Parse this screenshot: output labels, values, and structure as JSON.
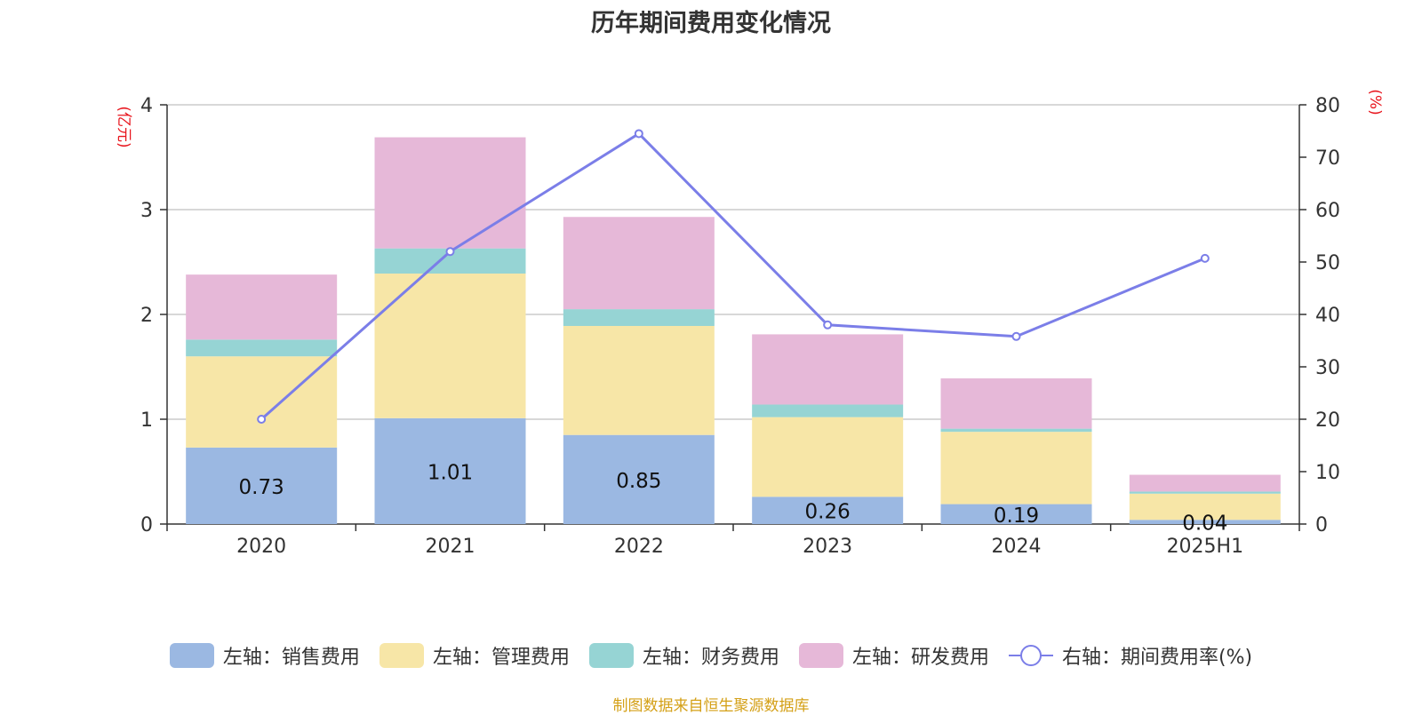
{
  "source_text": "制图数据来自恒生聚源数据库",
  "colors": {
    "sales": "#9bb8e2",
    "admin": "#f7e6a7",
    "finance": "#96d4d4",
    "rnd": "#e6b8d8",
    "rate": "#7b7ee8",
    "axis_unit": "#e8141c",
    "grid": "#cccccc",
    "text": "#333333"
  },
  "chart_data": {
    "type": "bar",
    "title": "历年期间费用变化情况",
    "categories": [
      "2020",
      "2021",
      "2022",
      "2023",
      "2024",
      "2025H1"
    ],
    "left_axis": {
      "unit_label": "(亿元)",
      "ylim": [
        0,
        4
      ],
      "ticks": [
        "0",
        "1",
        "2",
        "3",
        "4"
      ]
    },
    "right_axis": {
      "unit_label": "(%)",
      "ylim": [
        0,
        80
      ],
      "ticks": [
        "0",
        "10",
        "20",
        "30",
        "40",
        "50",
        "60",
        "70",
        "80"
      ]
    },
    "grid": true,
    "legend_position": "bottom",
    "series": [
      {
        "name": "左轴：销售费用",
        "key": "sales",
        "stack": true,
        "values": [
          0.73,
          1.01,
          0.85,
          0.26,
          0.19,
          0.04
        ],
        "labels": [
          "0.73",
          "1.01",
          "0.85",
          "0.26",
          "0.19",
          "0.04"
        ]
      },
      {
        "name": "左轴：管理费用",
        "key": "admin",
        "stack": true,
        "values": [
          0.87,
          1.38,
          1.04,
          0.76,
          0.69,
          0.25
        ]
      },
      {
        "name": "左轴：财务费用",
        "key": "finance",
        "stack": true,
        "values": [
          0.16,
          0.24,
          0.16,
          0.12,
          0.03,
          0.02
        ]
      },
      {
        "name": "左轴：研发费用",
        "key": "rnd",
        "stack": true,
        "values": [
          0.62,
          1.06,
          0.88,
          0.67,
          0.48,
          0.16
        ]
      },
      {
        "name": "右轴：期间费用率(%)",
        "key": "rate",
        "type": "line",
        "axis": "right",
        "values": [
          20.0,
          52.0,
          74.5,
          38.0,
          35.8,
          50.7
        ]
      }
    ]
  }
}
